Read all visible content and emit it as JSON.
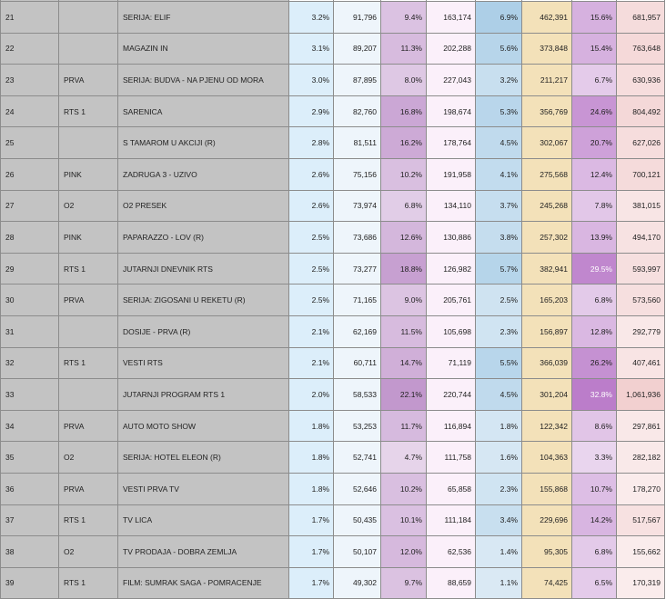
{
  "colors": {
    "row_bg": "#c3c3c3",
    "pct_rts_bg": "#dceefa",
    "aud_rts_bg": "#eef5fb",
    "pct_pink_bg": "#9bc4e0",
    "aud_pink_bg": "#e9f2f9",
    "pct_o2_bg": "#ecd7ee",
    "aud_o2_bg": "#fbf0fa",
    "pct_prva_bg": "#f3e1b9",
    "aud_prva_bg": "#fdf8ec",
    "pct_total_bg": "#e9d8ee",
    "aud_total_bg": "#f8dfdf"
  },
  "rows": [
    {
      "rank": "21",
      "channel": "",
      "show": "SERIJA: ELIF",
      "v1": "3.2%",
      "v2": "91,796",
      "v3": "9.4%",
      "v4": "163,174",
      "v5": "6.9%",
      "v6": "462,391",
      "v7": "15.6%",
      "v8": "681,957",
      "s1": 10,
      "s3": 45,
      "s5": 62,
      "s7": 47,
      "s8": 52
    },
    {
      "rank": "22",
      "channel": "",
      "show": "MAGAZIN IN",
      "v1": "3.1%",
      "v2": "89,207",
      "v3": "11.3%",
      "v4": "202,288",
      "v5": "5.6%",
      "v6": "373,848",
      "v7": "15.4%",
      "v8": "763,648",
      "s1": 10,
      "s3": 55,
      "s5": 50,
      "s7": 47,
      "s8": 58
    },
    {
      "rank": "23",
      "channel": "PRVA",
      "show": "SERIJA: BUDVA - NA PJENU OD MORA",
      "v1": "3.0%",
      "v2": "87,895",
      "v3": "8.0%",
      "v4": "227,043",
      "v5": "3.2%",
      "v6": "211,217",
      "v7": "6.7%",
      "v8": "630,936",
      "s1": 10,
      "s3": 38,
      "s5": 30,
      "s7": 20,
      "s8": 48
    },
    {
      "rank": "24",
      "channel": "RTS 1",
      "show": "SARENICA",
      "v1": "2.9%",
      "v2": "82,760",
      "v3": "16.8%",
      "v4": "198,674",
      "v5": "5.3%",
      "v6": "356,769",
      "v7": "24.6%",
      "v8": "804,492",
      "s1": 10,
      "s3": 80,
      "s5": 48,
      "s7": 75,
      "s8": 61
    },
    {
      "rank": "25",
      "channel": "",
      "show": "S TAMAROM U AKCIJI (R)",
      "v1": "2.8%",
      "v2": "81,511",
      "v3": "16.2%",
      "v4": "178,764",
      "v5": "4.5%",
      "v6": "302,067",
      "v7": "20.7%",
      "v8": "627,026",
      "s1": 10,
      "s3": 77,
      "s5": 40,
      "s7": 63,
      "s8": 48
    },
    {
      "rank": "26",
      "channel": "PINK",
      "show": "ZADRUGA 3 - UZIVO",
      "v1": "2.6%",
      "v2": "75,156",
      "v3": "10.2%",
      "v4": "191,958",
      "v5": "4.1%",
      "v6": "275,568",
      "v7": "12.4%",
      "v8": "700,121",
      "s1": 10,
      "s3": 49,
      "s5": 37,
      "s7": 38,
      "s8": 53
    },
    {
      "rank": "27",
      "channel": "O2",
      "show": "O2 PRESEK",
      "v1": "2.6%",
      "v2": "73,974",
      "v3": "6.8%",
      "v4": "134,110",
      "v5": "3.7%",
      "v6": "245,268",
      "v7": "7.8%",
      "v8": "381,015",
      "s1": 10,
      "s3": 32,
      "s5": 33,
      "s7": 24,
      "s8": 29
    },
    {
      "rank": "28",
      "channel": "PINK",
      "show": "PAPARAZZO - LOV (R)",
      "v1": "2.5%",
      "v2": "73,686",
      "v3": "12.6%",
      "v4": "130,886",
      "v5": "3.8%",
      "v6": "257,302",
      "v7": "13.9%",
      "v8": "494,170",
      "s1": 10,
      "s3": 60,
      "s5": 34,
      "s7": 42,
      "s8": 38
    },
    {
      "rank": "29",
      "channel": "RTS 1",
      "show": "JUTARNJI DNEVNIK RTS",
      "v1": "2.5%",
      "v2": "73,277",
      "v3": "18.8%",
      "v4": "126,982",
      "v5": "5.7%",
      "v6": "382,941",
      "v7": "29.5%",
      "v8": "593,997",
      "s1": 10,
      "s3": 90,
      "s5": 51,
      "s7": 90,
      "s8": 45
    },
    {
      "rank": "30",
      "channel": "PRVA",
      "show": "SERIJA: ZIGOSANI U REKETU (R)",
      "v1": "2.5%",
      "v2": "71,165",
      "v3": "9.0%",
      "v4": "205,761",
      "v5": "2.5%",
      "v6": "165,203",
      "v7": "6.8%",
      "v8": "573,560",
      "s1": 10,
      "s3": 43,
      "s5": 22,
      "s7": 21,
      "s8": 44
    },
    {
      "rank": "31",
      "channel": "",
      "show": "DOSIJE - PRVA (R)",
      "v1": "2.1%",
      "v2": "62,169",
      "v3": "11.5%",
      "v4": "105,698",
      "v5": "2.3%",
      "v6": "156,897",
      "v7": "12.8%",
      "v8": "292,779",
      "s1": 10,
      "s3": 55,
      "s5": 21,
      "s7": 39,
      "s8": 22
    },
    {
      "rank": "32",
      "channel": "RTS 1",
      "show": "VESTI RTS",
      "v1": "2.1%",
      "v2": "60,711",
      "v3": "14.7%",
      "v4": "71,119",
      "v5": "5.5%",
      "v6": "366,039",
      "v7": "26.2%",
      "v8": "407,461",
      "s1": 10,
      "s3": 70,
      "s5": 49,
      "s7": 80,
      "s8": 31
    },
    {
      "rank": "33",
      "channel": "",
      "show": "JUTARNJI PROGRAM RTS 1",
      "v1": "2.0%",
      "v2": "58,533",
      "v3": "22.1%",
      "v4": "220,744",
      "v5": "4.5%",
      "v6": "301,204",
      "v7": "32.8%",
      "v8": "1,061,936",
      "s1": 10,
      "s3": 100,
      "s5": 40,
      "s7": 100,
      "s8": 80
    },
    {
      "rank": "34",
      "channel": "PRVA",
      "show": "AUTO MOTO SHOW",
      "v1": "1.8%",
      "v2": "53,253",
      "v3": "11.7%",
      "v4": "116,894",
      "v5": "1.8%",
      "v6": "122,342",
      "v7": "8.6%",
      "v8": "297,861",
      "s1": 10,
      "s3": 56,
      "s5": 16,
      "s7": 26,
      "s8": 23
    },
    {
      "rank": "35",
      "channel": "O2",
      "show": "SERIJA: HOTEL ELEON (R)",
      "v1": "1.8%",
      "v2": "52,741",
      "v3": "4.7%",
      "v4": "111,758",
      "v5": "1.6%",
      "v6": "104,363",
      "v7": "3.3%",
      "v8": "282,182",
      "s1": 10,
      "s3": 22,
      "s5": 14,
      "s7": 10,
      "s8": 21
    },
    {
      "rank": "36",
      "channel": "PRVA",
      "show": "VESTI PRVA TV",
      "v1": "1.8%",
      "v2": "52,646",
      "v3": "10.2%",
      "v4": "65,858",
      "v5": "2.3%",
      "v6": "155,868",
      "v7": "10.7%",
      "v8": "178,270",
      "s1": 10,
      "s3": 49,
      "s5": 21,
      "s7": 33,
      "s8": 14
    },
    {
      "rank": "37",
      "channel": "RTS 1",
      "show": "TV LICA",
      "v1": "1.7%",
      "v2": "50,435",
      "v3": "10.1%",
      "v4": "111,184",
      "v5": "3.4%",
      "v6": "229,696",
      "v7": "14.2%",
      "v8": "517,567",
      "s1": 10,
      "s3": 48,
      "s5": 30,
      "s7": 43,
      "s8": 40
    },
    {
      "rank": "38",
      "channel": "O2",
      "show": "TV PRODAJA - DOBRA ZEMLJA",
      "v1": "1.7%",
      "v2": "50,107",
      "v3": "12.0%",
      "v4": "62,536",
      "v5": "1.4%",
      "v6": "95,305",
      "v7": "6.8%",
      "v8": "155,662",
      "s1": 10,
      "s3": 57,
      "s5": 12,
      "s7": 21,
      "s8": 12
    },
    {
      "rank": "39",
      "channel": "RTS 1",
      "show": "FILM: SUMRAK SAGA - POMRACENJE",
      "v1": "1.7%",
      "v2": "49,302",
      "v3": "9.7%",
      "v4": "88,659",
      "v5": "1.1%",
      "v6": "74,425",
      "v7": "6.5%",
      "v8": "170,319",
      "s1": 10,
      "s3": 46,
      "s5": 10,
      "s7": 20,
      "s8": 13
    }
  ]
}
